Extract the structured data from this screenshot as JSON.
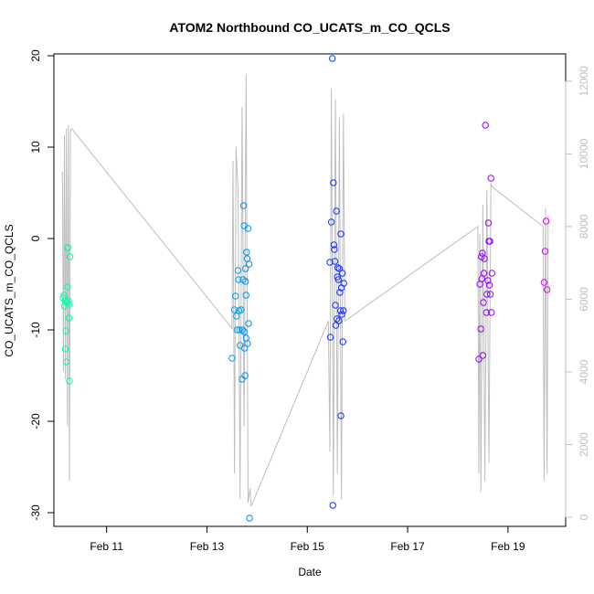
{
  "chart_data": {
    "type": "scatter",
    "title": "ATOM2 Northbound CO_UCATS_m_CO_QCLS",
    "xlabel": "Date",
    "ylabel": "CO_UCATS_m_CO_QCLS",
    "x_ticks": [
      "Feb 11",
      "Feb 13",
      "Feb 15",
      "Feb 17",
      "Feb 19"
    ],
    "x_tick_values": [
      11,
      13,
      15,
      17,
      19
    ],
    "xlim": [
      9.95,
      20.15
    ],
    "ylim": [
      -31.5,
      20.2
    ],
    "y_ticks": [
      -30,
      -20,
      -10,
      0,
      10,
      20
    ],
    "y2_ticks": [
      0,
      2000,
      4000,
      6000,
      8000,
      10000,
      12000
    ],
    "y2lim": [
      -250,
      12750
    ],
    "y2_color": "#bebebe",
    "grid": false,
    "legend": "none",
    "series": [
      {
        "kind": "points",
        "color_scale": [
          "#00ffaa",
          "#00e5e5",
          "#0044ff",
          "#5500ff",
          "#dd00ff"
        ],
        "points": [
          [
            10.13,
            -6.5
          ],
          [
            10.15,
            -6.2
          ],
          [
            10.16,
            -7.4
          ],
          [
            10.17,
            -6.8
          ],
          [
            10.18,
            -12.1
          ],
          [
            10.19,
            -10.1
          ],
          [
            10.2,
            -13.5
          ],
          [
            10.21,
            -7.0
          ],
          [
            10.22,
            -5.3
          ],
          [
            10.22,
            -1.0
          ],
          [
            10.23,
            -1.0
          ],
          [
            10.24,
            -6.8
          ],
          [
            10.25,
            -7.2
          ],
          [
            10.25,
            -8.7
          ],
          [
            10.26,
            -15.6
          ],
          [
            10.27,
            -2.0
          ],
          [
            13.5,
            -13.1
          ],
          [
            13.55,
            -7.8
          ],
          [
            13.57,
            -6.3
          ],
          [
            13.59,
            -8.5
          ],
          [
            13.6,
            -10.0
          ],
          [
            13.62,
            -3.5
          ],
          [
            13.63,
            -4.5
          ],
          [
            13.64,
            -7.9
          ],
          [
            13.65,
            -10.0
          ],
          [
            13.66,
            -11.7
          ],
          [
            13.68,
            -7.8
          ],
          [
            13.7,
            -15.4
          ],
          [
            13.71,
            -10.0
          ],
          [
            13.72,
            -4.5
          ],
          [
            13.73,
            3.6
          ],
          [
            13.74,
            -10.2
          ],
          [
            13.74,
            1.4
          ],
          [
            13.75,
            -12.0
          ],
          [
            13.76,
            -15.0
          ],
          [
            13.77,
            -4.7
          ],
          [
            13.77,
            -3.3
          ],
          [
            13.78,
            -10.9
          ],
          [
            13.78,
            -6.2
          ],
          [
            13.79,
            -1.5
          ],
          [
            13.8,
            -2.2
          ],
          [
            13.81,
            -11.5
          ],
          [
            13.82,
            1.1
          ],
          [
            13.83,
            -9.3
          ],
          [
            13.84,
            -2.8
          ],
          [
            13.85,
            -30.6
          ],
          [
            15.45,
            -2.6
          ],
          [
            15.46,
            -10.8
          ],
          [
            15.48,
            1.8
          ],
          [
            15.5,
            19.7
          ],
          [
            15.51,
            -29.2
          ],
          [
            15.52,
            6.1
          ],
          [
            15.53,
            -0.7
          ],
          [
            15.54,
            -1.2
          ],
          [
            15.55,
            -2.5
          ],
          [
            15.56,
            -7.3
          ],
          [
            15.57,
            -9.5
          ],
          [
            15.58,
            3.0
          ],
          [
            15.59,
            -8.8
          ],
          [
            15.6,
            -4.2
          ],
          [
            15.61,
            -3.2
          ],
          [
            15.62,
            -4.5
          ],
          [
            15.63,
            -9.0
          ],
          [
            15.64,
            -3.3
          ],
          [
            15.65,
            -5.9
          ],
          [
            15.66,
            -7.9
          ],
          [
            15.67,
            -19.4
          ],
          [
            15.67,
            0.5
          ],
          [
            15.68,
            -5.4
          ],
          [
            15.69,
            -8.3
          ],
          [
            15.7,
            -3.8
          ],
          [
            15.71,
            -11.3
          ],
          [
            15.72,
            -7.9
          ],
          [
            15.73,
            -4.9
          ],
          [
            18.42,
            -13.2
          ],
          [
            18.44,
            -5.0
          ],
          [
            18.46,
            -9.9
          ],
          [
            18.47,
            -2.0
          ],
          [
            18.48,
            -4.4
          ],
          [
            18.49,
            -1.6
          ],
          [
            18.5,
            -12.8
          ],
          [
            18.51,
            -7.0
          ],
          [
            18.52,
            -3.8
          ],
          [
            18.53,
            -2.2
          ],
          [
            18.55,
            12.4
          ],
          [
            18.57,
            -8.1
          ],
          [
            18.58,
            -6.1
          ],
          [
            18.6,
            -4.6
          ],
          [
            18.61,
            1.7
          ],
          [
            18.62,
            -0.3
          ],
          [
            18.63,
            -5.1
          ],
          [
            18.64,
            -0.3
          ],
          [
            18.65,
            -6.1
          ],
          [
            18.66,
            6.6
          ],
          [
            18.67,
            -8.1
          ],
          [
            18.68,
            -3.8
          ],
          [
            19.72,
            -4.8
          ],
          [
            19.74,
            -1.4
          ],
          [
            19.76,
            1.9
          ],
          [
            19.78,
            -5.6
          ]
        ]
      },
      {
        "name": "",
        "kind": "line",
        "axis": "right",
        "color": "#bebebe",
        "x": [
          10.12,
          10.14,
          10.16,
          10.18,
          10.2,
          10.22,
          10.24,
          10.26,
          10.28,
          10.3,
          13.5,
          13.52,
          13.55,
          13.58,
          13.62,
          13.66,
          13.7,
          13.74,
          13.78,
          13.82,
          13.86,
          13.88,
          15.42,
          15.45,
          15.48,
          15.52,
          15.56,
          15.6,
          15.64,
          15.68,
          15.72,
          15.75,
          18.4,
          18.42,
          18.44,
          18.46,
          18.5,
          18.54,
          18.58,
          18.62,
          18.66,
          18.68,
          19.7,
          19.72,
          19.75,
          19.78,
          19.8
        ],
        "y": [
          9500,
          4000,
          10500,
          3800,
          10700,
          2500,
          10800,
          1000,
          10600,
          10700,
          5200,
          9800,
          1200,
          10200,
          9000,
          500,
          11300,
          2500,
          12200,
          400,
          800,
          300,
          5400,
          1800,
          11800,
          600,
          11500,
          1200,
          11000,
          500,
          11100,
          5400,
          8000,
          1200,
          7800,
          700,
          8600,
          1000,
          9000,
          1500,
          9200,
          9100,
          8000,
          1000,
          8500,
          1200,
          8300
        ]
      }
    ]
  }
}
